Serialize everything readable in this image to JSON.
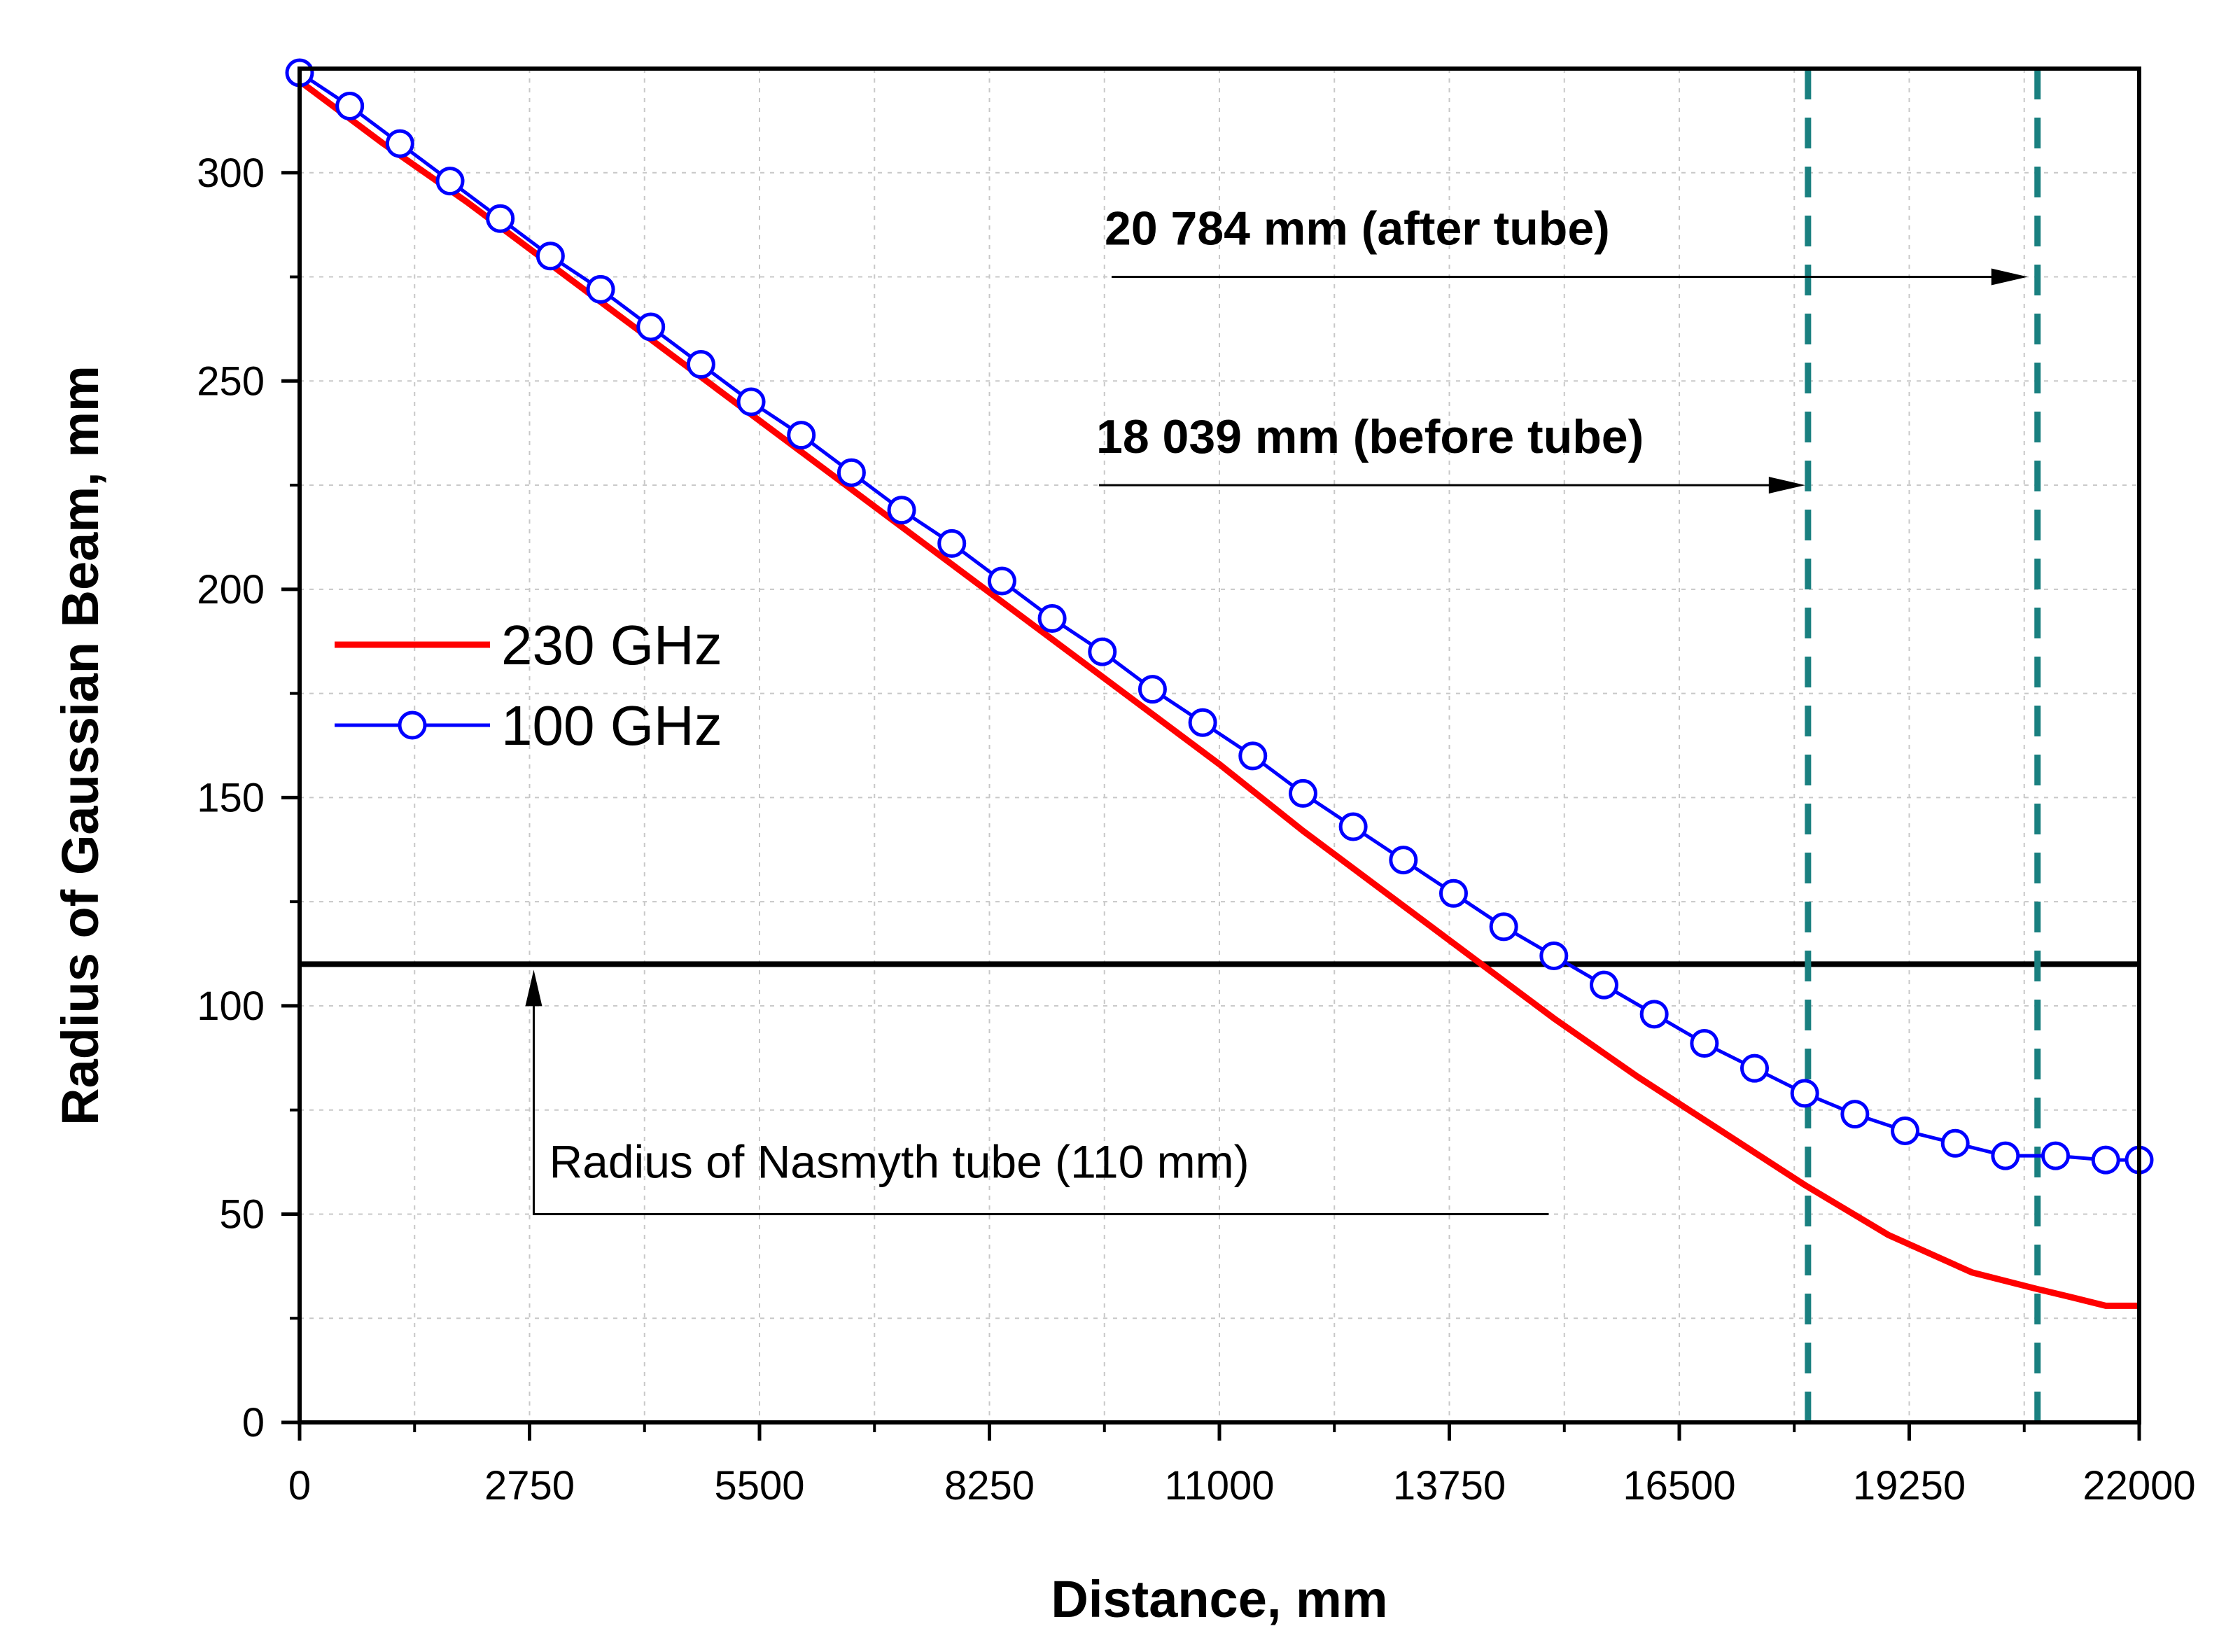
{
  "chart_data": {
    "type": "line",
    "xlabel": "Distance, mm",
    "ylabel": "Radius of Gaussian Beam, mm",
    "xlim": [
      0,
      22000
    ],
    "ylim": [
      0,
      325
    ],
    "x_ticks": [
      0,
      2750,
      5500,
      8250,
      11000,
      13750,
      16500,
      19250,
      22000
    ],
    "y_ticks": [
      0,
      50,
      100,
      150,
      200,
      250,
      300
    ],
    "grid": true,
    "legend_position": "left",
    "series": [
      {
        "name": "230 GHz",
        "color": "#ff0000",
        "marker": "none",
        "x": [
          0,
          1000,
          2000,
          3000,
          4000,
          5000,
          6000,
          7000,
          8000,
          9000,
          10000,
          11000,
          12000,
          13000,
          14000,
          15000,
          16000,
          17000,
          18000,
          19000,
          20000,
          20784,
          21200,
          21600,
          22000
        ],
        "y": [
          322,
          307,
          293,
          278,
          263,
          248,
          233,
          218,
          203,
          188,
          173,
          158,
          142,
          127,
          112,
          97,
          83,
          70,
          57,
          45,
          36,
          32,
          30,
          28,
          28
        ]
      },
      {
        "name": "100 GHz",
        "color": "#0000ff",
        "marker": "open-circle",
        "x": [
          0,
          600,
          1200,
          1800,
          2400,
          3000,
          3600,
          4200,
          4800,
          5400,
          6000,
          6600,
          7200,
          7800,
          8400,
          9000,
          9600,
          10200,
          10800,
          11400,
          12000,
          12600,
          13200,
          13800,
          14400,
          15000,
          15600,
          16200,
          16800,
          17400,
          18000,
          18600,
          19200,
          19800,
          20400,
          21000,
          21600,
          22000
        ],
        "y": [
          324,
          316,
          307,
          298,
          289,
          280,
          272,
          263,
          254,
          245,
          237,
          228,
          219,
          211,
          202,
          193,
          185,
          176,
          168,
          160,
          151,
          143,
          135,
          127,
          119,
          112,
          105,
          98,
          91,
          85,
          79,
          74,
          70,
          67,
          64,
          64,
          63,
          63
        ]
      }
    ],
    "reference_lines": [
      {
        "orientation": "horizontal",
        "value": 110,
        "color": "#000000",
        "style": "solid"
      },
      {
        "orientation": "vertical",
        "value": 18039,
        "color": "#1a8080",
        "style": "dashed"
      },
      {
        "orientation": "vertical",
        "value": 20784,
        "color": "#1a8080",
        "style": "dashed"
      }
    ],
    "annotations": [
      {
        "text": "20 784 mm (after tube)",
        "arrow_to_x": 20784,
        "y": 275
      },
      {
        "text": "18 039 mm (before tube)",
        "arrow_to_x": 18039,
        "y": 225
      },
      {
        "text": "Radius of Nasmyth tube (110 mm)",
        "arrow_to_y": 110,
        "x": 2800,
        "y": 50
      }
    ]
  }
}
